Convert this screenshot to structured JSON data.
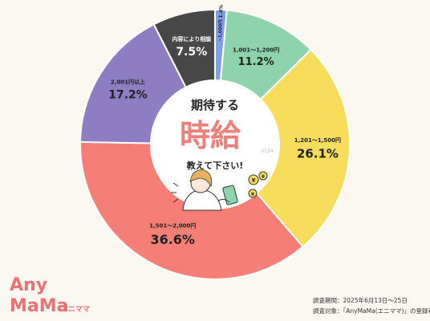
{
  "chart_data": {
    "type": "pie",
    "title": "期待する時給教えて下さい!",
    "title_parts": {
      "line1": "期待する",
      "big": "時給",
      "line3": "教えて下さい!"
    },
    "n_label": "n134",
    "categories": [
      "~1,000円",
      "1,001〜1,200円",
      "1,201〜1,500円",
      "1,501〜2,000円",
      "2,001円以上",
      "内容により相談"
    ],
    "values": [
      1.4,
      11.2,
      26.1,
      36.6,
      17.2,
      7.5
    ],
    "value_labels": [
      "1.4%",
      "11.2%",
      "26.1%",
      "36.6%",
      "17.2%",
      "7.5%"
    ],
    "colors": [
      "#7f9ef3",
      "#8fd3ad",
      "#f8dc5b",
      "#f57f76",
      "#8f7dc4",
      "#474747"
    ],
    "legend": "none"
  },
  "footer": {
    "survey_period": "調査期間：2025年6月13日〜25日",
    "survey_target": "調査対象：「AnyMaMa(エニママ)」の登録者"
  },
  "logo": {
    "line1": "Any",
    "line2": "MaMa",
    "sub": "エニママ"
  }
}
